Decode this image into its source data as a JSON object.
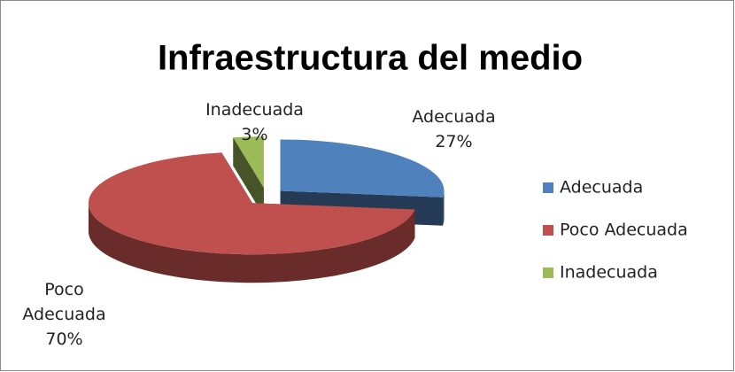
{
  "chart_data": {
    "type": "pie",
    "title": "Infraestructura del medio",
    "categories": [
      "Adecuada",
      "Poco Adecuada",
      "Inadecuada"
    ],
    "values": [
      27,
      70,
      3
    ],
    "value_labels": [
      "27%",
      "70%",
      "3%"
    ],
    "colors": [
      "#4f81bd",
      "#c0504d",
      "#9bbb59"
    ],
    "legend": "right"
  }
}
